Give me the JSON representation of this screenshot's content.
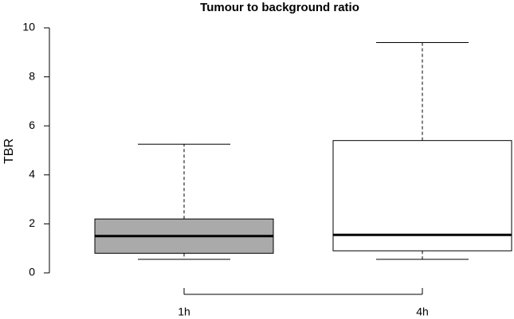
{
  "chart_data": {
    "type": "box",
    "title": "Tumour to background ratio",
    "y_label": "TBR",
    "categories": [
      "1h",
      "4h"
    ],
    "boxes": [
      {
        "min": 0.55,
        "q1": 0.8,
        "median": 1.5,
        "q3": 2.2,
        "max": 5.25,
        "color": "#aaaaaa"
      },
      {
        "min": 0.55,
        "q1": 0.9,
        "median": 1.55,
        "q3": 5.4,
        "max": 9.4,
        "color": "#ffffff"
      }
    ],
    "ylim": [
      0,
      10
    ],
    "yticks": [
      0,
      2,
      4,
      6,
      8,
      10
    ]
  }
}
